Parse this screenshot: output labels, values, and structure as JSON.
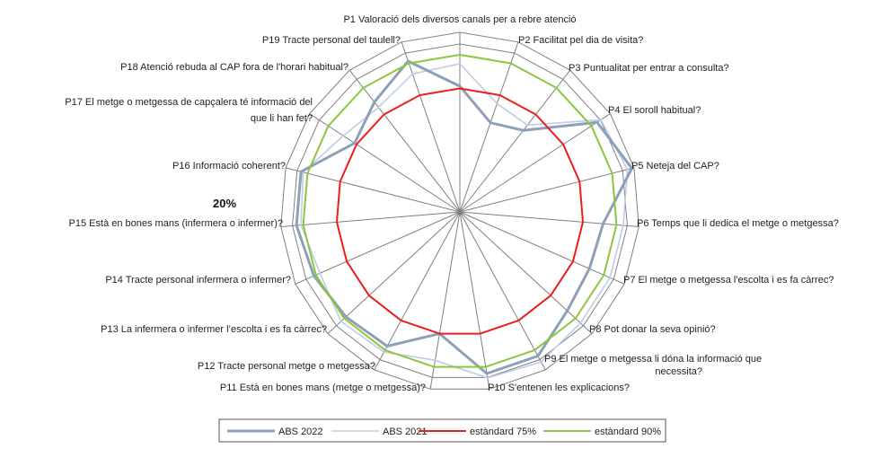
{
  "chart_data": {
    "type": "radar",
    "center_label": "20%",
    "scale": {
      "min": 0.2,
      "max": 1.0
    },
    "categories": [
      "P1 Valoració dels diversos canals per a rebre atenció",
      "P2 Facilitat pel dia de visita?",
      "P3 Puntualitat per entrar a consulta?",
      "P4 El soroll habitual?",
      "P5 Neteja del CAP?",
      "P6 Temps que li dedica el metge o metgessa?",
      "P7 El metge o metgessa l'escolta i es fa càrrec?",
      "P8 Pot donar la seva opinió?",
      "P9 El metge o metgessa li dóna  la  informació que necessita?",
      "P10 S'entenen les explicacions?",
      "P11 Està en bones mans (metge o metgessa)?",
      "P12 Tracte personal metge o metgessa?",
      "P13 La infermera o infermer l’escolta i es fa càrrec?",
      "P14 Tracte personal infermera o infermer?",
      "P15 Està en bones mans (infermera o infermer)?",
      "P16 Informació coherent?",
      "P17 El metge o metgessa de capçalera té informació del que li han fet?",
      "P18 Atenció rebuda al CAP fora de l'horari habitual?",
      "P19 Tracte personal del taulell?"
    ],
    "series": [
      {
        "name": "ABS 2022",
        "color": "#8da0b8",
        "width": 3,
        "values": [
          0.76,
          0.62,
          0.66,
          0.93,
          0.99,
          0.84,
          0.83,
          0.85,
          0.93,
          0.93,
          0.75,
          0.88,
          0.89,
          0.91,
          0.93,
          0.93,
          0.76,
          0.82,
          0.91
        ]
      },
      {
        "name": "ABS 2021",
        "color": "#bccde6",
        "width": 1.6,
        "values": [
          0.86,
          0.71,
          0.69,
          0.95,
          0.97,
          0.93,
          0.93,
          0.93,
          0.96,
          0.95,
          0.87,
          0.91,
          0.92,
          0.88,
          0.91,
          0.92,
          0.82,
          0.79,
          0.85
        ]
      },
      {
        "name": "estàndard 75%",
        "color": "#ee1c1c",
        "width": 2,
        "values": [
          0.75,
          0.75,
          0.75,
          0.75,
          0.75,
          0.75,
          0.75,
          0.75,
          0.75,
          0.75,
          0.75,
          0.75,
          0.75,
          0.75,
          0.75,
          0.75,
          0.75,
          0.75,
          0.75
        ]
      },
      {
        "name": "estàndard 90%",
        "color": "#8cc63e",
        "width": 2,
        "values": [
          0.9,
          0.9,
          0.9,
          0.9,
          0.9,
          0.9,
          0.9,
          0.9,
          0.9,
          0.9,
          0.9,
          0.9,
          0.9,
          0.9,
          0.9,
          0.9,
          0.9,
          0.9,
          0.9
        ]
      }
    ],
    "grid": true,
    "grid_color": "#7f7f7f",
    "legend_position": "bottom"
  }
}
